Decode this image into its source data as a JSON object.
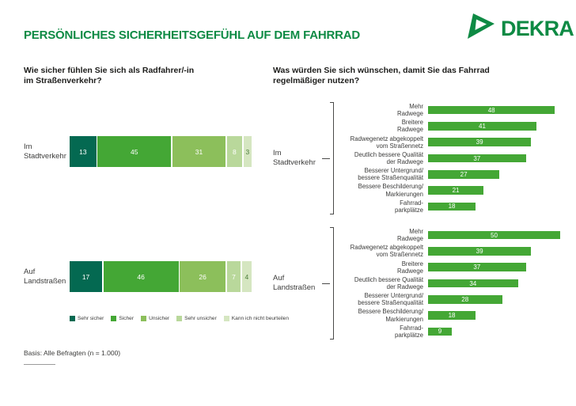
{
  "page": {
    "background": "#ffffff"
  },
  "header": {
    "title": "PERSÖNLICHES SICHERHEITSGEFÜHL AUF DEM FAHRRAD",
    "brand": "DEKRA",
    "brand_color": "#0e8a44"
  },
  "colors": {
    "title_green": "#0e8a44",
    "bar_green": "#44a735",
    "text_dark": "#1d1d1b",
    "label_gray": "#3c3c3b",
    "segment_colors": [
      "#046951",
      "#44a735",
      "#8cbf5b",
      "#b9d89b",
      "#d5e6c1"
    ],
    "last_segment_text": "#4c7d3c"
  },
  "chart_data": [
    {
      "type": "bar",
      "subtype": "horizontal-stacked-100",
      "question": "Wie sicher fühlen Sie sich als Radfahrer/-in im Straßenverkehr?",
      "question_lines": [
        "Wie sicher fühlen Sie sich als Radfahrer/-in",
        "im Straßenverkehr?"
      ],
      "unit": "percent",
      "xlim": [
        0,
        100
      ],
      "categories": [
        "Im Stadtverkehr",
        "Auf Landstraßen"
      ],
      "category_lines": [
        [
          "Im",
          "Stadtverkehr"
        ],
        [
          "Auf",
          "Landstraßen"
        ]
      ],
      "legend": [
        "Sehr sicher",
        "Sicher",
        "Unsicher",
        "Sehr unsicher",
        "Kann ich nicht beurteilen"
      ],
      "legend_position": "bottom",
      "series": [
        {
          "name": "Sehr sicher",
          "values": [
            13,
            17
          ]
        },
        {
          "name": "Sicher",
          "values": [
            45,
            46
          ]
        },
        {
          "name": "Unsicher",
          "values": [
            31,
            26
          ]
        },
        {
          "name": "Sehr unsicher",
          "values": [
            8,
            7
          ]
        },
        {
          "name": "Kann ich nicht beurteilen",
          "values": [
            3,
            4
          ]
        }
      ]
    },
    {
      "type": "bar",
      "subtype": "horizontal-grouped",
      "question": "Was würden Sie sich wünschen, damit Sie das Fahrrad regelmäßiger nutzen?",
      "question_lines": [
        "Was würden Sie sich wünschen, damit Sie das Fahrrad",
        "regelmäßiger nutzen?"
      ],
      "unit": "percent",
      "xlim": [
        0,
        55
      ],
      "grid": false,
      "groups": [
        {
          "label": "Im Stadtverkehr",
          "label_lines": [
            "Im",
            "Stadtverkehr"
          ],
          "items": [
            {
              "label": "Mehr Radwege",
              "label_lines": [
                "Mehr",
                "Radwege"
              ],
              "value": 48
            },
            {
              "label": "Breitere Radwege",
              "label_lines": [
                "Breitere",
                "Radwege"
              ],
              "value": 41
            },
            {
              "label": "Radwegenetz abgekoppelt vom Straßennetz",
              "label_lines": [
                "Radwegenetz abgekoppelt",
                "vom Straßennetz"
              ],
              "value": 39
            },
            {
              "label": "Deutlich bessere Qualität der Radwege",
              "label_lines": [
                "Deutlich bessere Qualität",
                "der Radwege"
              ],
              "value": 37
            },
            {
              "label": "Besserer Untergrund/bessere Straßenqualität",
              "label_lines": [
                "Besserer Untergrund/",
                "bessere Straßenqualität"
              ],
              "value": 27
            },
            {
              "label": "Bessere Beschilderung/Markierungen",
              "label_lines": [
                "Bessere Beschilderung/",
                "Markierungen"
              ],
              "value": 21
            },
            {
              "label": "Fahrradparkplätze",
              "label_lines": [
                "Fahrrad-",
                "parkplätze"
              ],
              "value": 18
            }
          ]
        },
        {
          "label": "Auf Landstraßen",
          "label_lines": [
            "Auf",
            "Landstraßen"
          ],
          "items": [
            {
              "label": "Mehr Radwege",
              "label_lines": [
                "Mehr",
                "Radwege"
              ],
              "value": 50
            },
            {
              "label": "Radwegenetz abgekoppelt vom Straßennetz",
              "label_lines": [
                "Radwegenetz abgekoppelt",
                "vom Straßennetz"
              ],
              "value": 39
            },
            {
              "label": "Breitere Radwege",
              "label_lines": [
                "Breitere",
                "Radwege"
              ],
              "value": 37
            },
            {
              "label": "Deutlich bessere Qualität der Radwege",
              "label_lines": [
                "Deutlich bessere Qualität",
                "der Radwege"
              ],
              "value": 34
            },
            {
              "label": "Besserer Untergrund/bessere Straßenqualität",
              "label_lines": [
                "Besserer Untergrund/",
                "bessere Straßenqualität"
              ],
              "value": 28
            },
            {
              "label": "Bessere Beschilderung/Markierungen",
              "label_lines": [
                "Bessere Beschilderung/",
                "Markierungen"
              ],
              "value": 18
            },
            {
              "label": "Fahrradparkplätze",
              "label_lines": [
                "Fahrrad-",
                "parkplätze"
              ],
              "value": 9
            }
          ]
        }
      ]
    }
  ],
  "footer": {
    "basis": "Basis: Alle Befragten (n = 1.000)"
  }
}
